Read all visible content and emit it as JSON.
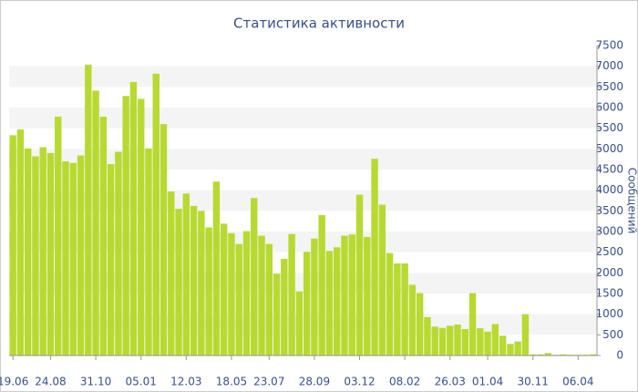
{
  "chart_data": {
    "type": "bar",
    "title": "Статистика активности",
    "y_label": "Сообщений",
    "categories": [
      "19.06",
      null,
      null,
      null,
      null,
      "24.08",
      null,
      null,
      null,
      null,
      null,
      "31.10",
      null,
      null,
      null,
      null,
      null,
      "05.01",
      null,
      null,
      null,
      null,
      null,
      "12.03",
      null,
      null,
      null,
      null,
      null,
      "18.05",
      null,
      null,
      null,
      null,
      "23.07",
      null,
      null,
      null,
      null,
      null,
      "28.09",
      null,
      null,
      null,
      null,
      null,
      "03.12",
      null,
      null,
      null,
      null,
      null,
      "08.02",
      null,
      null,
      null,
      null,
      null,
      "26.03",
      null,
      null,
      null,
      null,
      "01.04",
      null,
      null,
      null,
      null,
      null,
      "30.11",
      null,
      null,
      null,
      null,
      null,
      "06.04",
      null,
      null
    ],
    "values": [
      5330,
      5470,
      5010,
      4820,
      5040,
      4900,
      5780,
      4700,
      4660,
      4840,
      7040,
      6410,
      5780,
      4630,
      4930,
      6280,
      6620,
      6210,
      5010,
      6820,
      5600,
      3970,
      3550,
      3920,
      3620,
      3500,
      3100,
      4210,
      3190,
      2960,
      2700,
      3010,
      3810,
      2900,
      2700,
      1980,
      2340,
      2940,
      1550,
      2510,
      2830,
      3400,
      2530,
      2620,
      2900,
      2930,
      3890,
      2870,
      4760,
      3650,
      2480,
      2230,
      2230,
      1710,
      1510,
      930,
      700,
      670,
      720,
      750,
      640,
      1510,
      660,
      580,
      760,
      480,
      280,
      340,
      1000,
      30,
      30,
      60,
      20,
      30,
      20,
      20,
      20,
      30
    ],
    "color": "#b8d932",
    "ylim": [
      0,
      7500
    ],
    "yticks": [
      0,
      500,
      1000,
      1500,
      2000,
      2500,
      3000,
      3500,
      4000,
      4500,
      5000,
      5500,
      6000,
      6500,
      7000,
      7500
    ],
    "grid": true
  }
}
